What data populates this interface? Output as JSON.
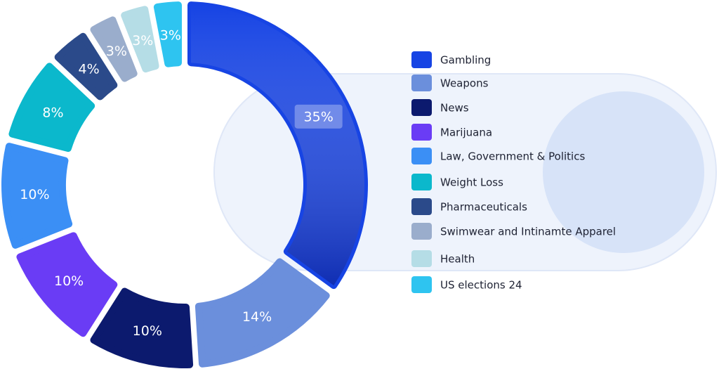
{
  "chart_data": {
    "type": "donut",
    "categories": [
      "Gambling",
      "Weapons",
      "News",
      "Marijuana",
      "Law, Government & Politics",
      "Weight Loss",
      "Pharmaceuticals",
      "Swimwear and Intinamte Apparel",
      "Health",
      "US elections 24"
    ],
    "values": [
      35,
      14,
      10,
      10,
      10,
      8,
      4,
      3,
      3,
      3
    ],
    "value_labels": [
      "35%",
      "14%",
      "10%",
      "10%",
      "10%",
      "8%",
      "4%",
      "3%",
      "3%",
      "3%"
    ],
    "colors": [
      "#1744e4",
      "#6b8fdc",
      "#0c1a6e",
      "#6a3cf5",
      "#3b8ff5",
      "#0bb8cc",
      "#2b4a8a",
      "#9aadcc",
      "#b5dde6",
      "#2ec4f0"
    ],
    "legend": "right"
  }
}
